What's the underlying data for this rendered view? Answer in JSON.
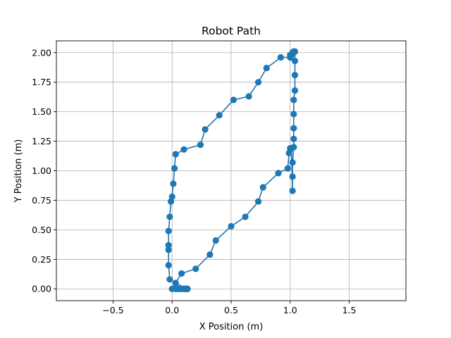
{
  "chart_data": {
    "type": "line",
    "title": "Robot Path",
    "xlabel": "X Position (m)",
    "ylabel": "Y Position (m)",
    "xlim": [
      -0.98,
      1.98
    ],
    "ylim": [
      -0.1,
      2.1
    ],
    "xticks": [
      -0.5,
      0.0,
      0.5,
      1.0,
      1.5
    ],
    "xtick_labels": [
      "−0.5",
      "0.0",
      "0.5",
      "1.0",
      "1.5"
    ],
    "yticks": [
      0.0,
      0.25,
      0.5,
      0.75,
      1.0,
      1.25,
      1.5,
      1.75,
      2.0
    ],
    "ytick_labels": [
      "0.00",
      "0.25",
      "0.50",
      "0.75",
      "1.00",
      "1.25",
      "1.50",
      "1.75",
      "2.00"
    ],
    "grid": true,
    "marker": "circle",
    "color": "#1f77b4",
    "series": [
      {
        "name": "",
        "x": [
          0.0,
          0.03,
          0.08,
          0.2,
          0.32,
          0.37,
          0.5,
          0.62,
          0.73,
          0.77,
          0.9,
          0.98,
          0.99,
          1.0,
          1.01,
          1.02,
          1.02,
          1.02,
          1.03,
          1.03,
          1.03,
          1.03,
          1.03,
          1.04,
          1.04,
          1.04,
          1.04,
          1.03,
          1.03,
          1.02,
          1.02,
          1.02,
          1.01,
          1.0,
          1.0,
          0.92,
          0.8,
          0.73,
          0.65,
          0.52,
          0.4,
          0.28,
          0.24,
          0.1,
          0.03,
          0.02,
          0.01,
          0.0,
          -0.01,
          -0.02,
          -0.03,
          -0.03,
          -0.03,
          -0.03,
          -0.02,
          0.12,
          0.13,
          0.13,
          0.13,
          0.12,
          0.12,
          0.11,
          0.1,
          0.09,
          0.07,
          0.05,
          0.05,
          0.03,
          0.0
        ],
        "y": [
          0.0,
          0.05,
          0.13,
          0.17,
          0.29,
          0.41,
          0.53,
          0.61,
          0.74,
          0.86,
          0.98,
          1.02,
          1.15,
          1.19,
          1.19,
          0.83,
          0.95,
          1.07,
          1.2,
          1.27,
          1.36,
          1.48,
          1.6,
          1.68,
          1.81,
          1.93,
          2.01,
          2.01,
          2.0,
          2.0,
          2.0,
          1.99,
          1.98,
          1.98,
          1.96,
          1.96,
          1.87,
          1.75,
          1.63,
          1.6,
          1.47,
          1.35,
          1.22,
          1.18,
          1.14,
          1.02,
          0.89,
          0.78,
          0.74,
          0.61,
          0.49,
          0.37,
          0.33,
          0.2,
          0.08,
          0.0,
          0.0,
          0.0,
          0.0,
          0.0,
          0.0,
          0.0,
          0.0,
          0.0,
          0.0,
          0.0,
          0.0,
          0.0,
          0.0
        ]
      }
    ]
  }
}
